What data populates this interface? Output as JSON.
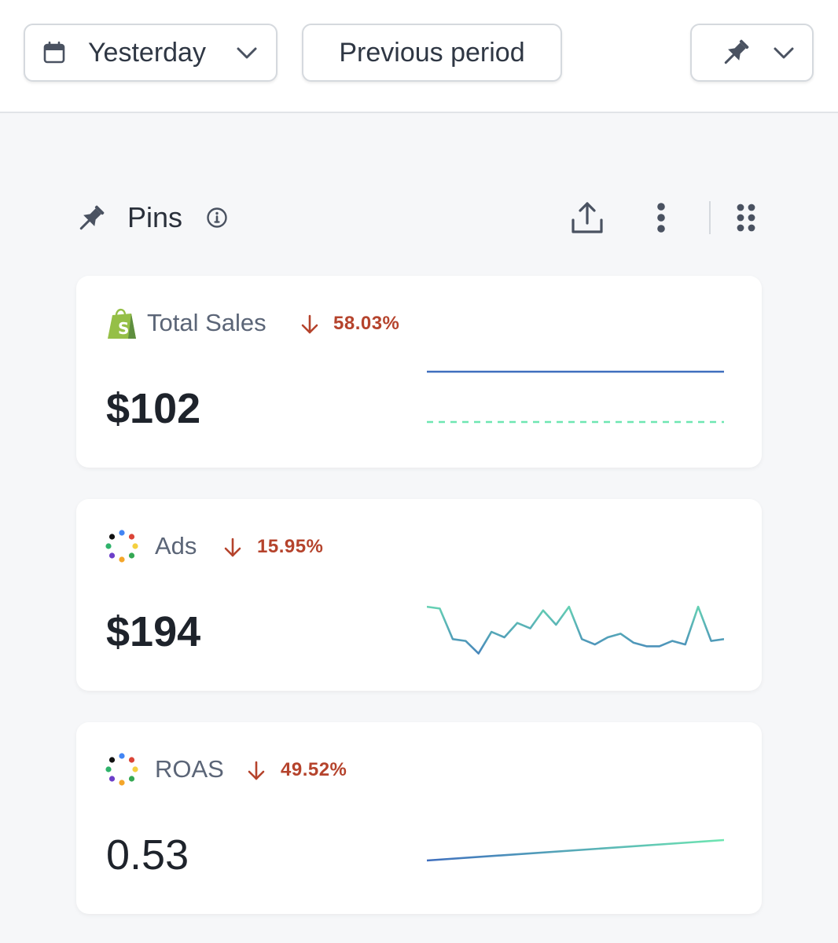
{
  "toolbar": {
    "date_range_label": "Yesterday",
    "compare_label": "Previous period"
  },
  "pins_section": {
    "title": "Pins"
  },
  "metrics": [
    {
      "label": "Total Sales",
      "source_icon": "shopify-icon",
      "change": "58.03%",
      "direction": "down",
      "value": "$102",
      "sparkline": {
        "current": [
          100,
          100,
          100,
          100,
          100,
          100,
          100,
          100,
          100,
          100
        ],
        "previous": [
          0,
          0,
          0,
          0,
          0,
          0,
          0,
          0,
          0,
          0
        ]
      }
    },
    {
      "label": "Ads",
      "source_icon": "multi-channel-icon",
      "change": "15.95%",
      "direction": "down",
      "value": "$194",
      "sparkline": {
        "current": [
          62,
          60,
          26,
          24,
          10,
          34,
          28,
          44,
          38,
          58,
          42,
          62,
          26,
          20,
          28,
          32,
          22,
          18,
          18,
          24,
          20,
          62,
          24,
          26
        ]
      }
    },
    {
      "label": "ROAS",
      "source_icon": "multi-channel-icon",
      "change": "49.52%",
      "direction": "down",
      "value": "0.53",
      "sparkline": {
        "current": [
          10,
          28
        ]
      }
    }
  ],
  "colors": {
    "accent_line_start": "#3f6fbe",
    "accent_line_end": "#6ee6b1",
    "negative": "#b5432c",
    "shopify_green": "#95bf47"
  }
}
